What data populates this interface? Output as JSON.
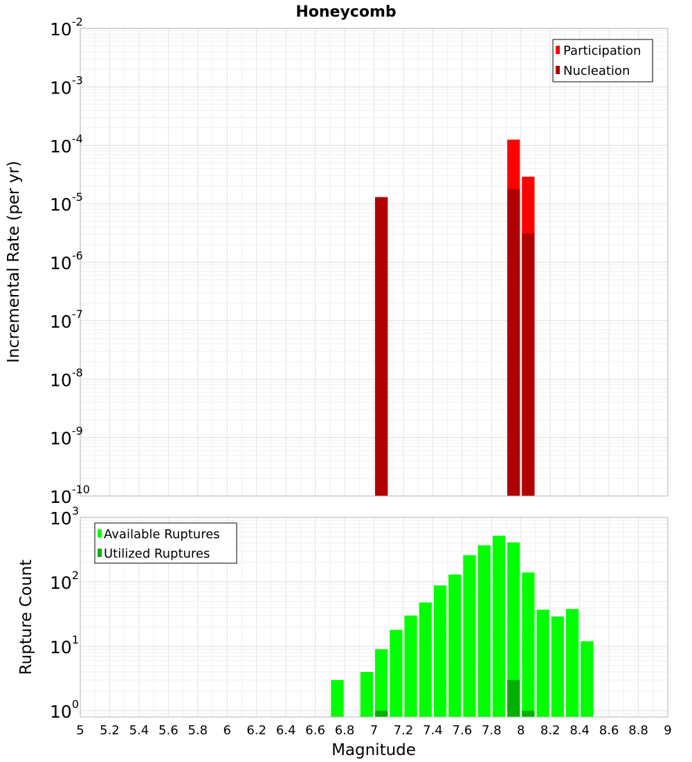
{
  "chart_data": [
    {
      "type": "bar",
      "title": "Honeycomb",
      "xlabel": "",
      "ylabel": "Incremental Rate (per yr)",
      "yscale": "log",
      "xlim": [
        5,
        9
      ],
      "ylim": [
        1e-10,
        0.01
      ],
      "y_tick_exponents": [
        "-10",
        "-9",
        "-8",
        "-7",
        "-6",
        "-5",
        "-4",
        "-3",
        "-2"
      ],
      "grid": true,
      "legend_position": "top-right",
      "legend": [
        "Participation",
        "Nucleation"
      ],
      "bin_width": 0.1,
      "series": [
        {
          "name": "Participation",
          "color": "#ff0000",
          "points": [
            {
              "x": 7.05,
              "y": 1.3e-05
            },
            {
              "x": 7.95,
              "y": 0.000125
            },
            {
              "x": 8.05,
              "y": 2.9e-05
            }
          ]
        },
        {
          "name": "Nucleation",
          "color": "#b00000",
          "points": [
            {
              "x": 7.05,
              "y": 1.3e-05
            },
            {
              "x": 7.95,
              "y": 1.8e-05
            },
            {
              "x": 8.05,
              "y": 3.1e-06
            }
          ]
        }
      ]
    },
    {
      "type": "bar",
      "title": "",
      "xlabel": "Magnitude",
      "ylabel": "Rupture Count",
      "yscale": "log",
      "xlim": [
        5,
        9
      ],
      "ylim": [
        0.8,
        1000
      ],
      "x_ticks": [
        "5",
        "5.2",
        "5.4",
        "5.6",
        "5.8",
        "6",
        "6.2",
        "6.4",
        "6.6",
        "6.8",
        "7",
        "7.2",
        "7.4",
        "7.6",
        "7.8",
        "8",
        "8.2",
        "8.4",
        "8.6",
        "8.8",
        "9"
      ],
      "y_tick_exponents": [
        "0",
        "1",
        "2",
        "3"
      ],
      "grid": true,
      "legend_position": "top-left",
      "legend": [
        "Available Ruptures",
        "Utilized Ruptures"
      ],
      "bin_width": 0.1,
      "series": [
        {
          "name": "Available Ruptures",
          "color": "#00ff00",
          "points": [
            {
              "x": 6.75,
              "y": 3
            },
            {
              "x": 6.95,
              "y": 4
            },
            {
              "x": 7.05,
              "y": 9
            },
            {
              "x": 7.15,
              "y": 18
            },
            {
              "x": 7.25,
              "y": 30
            },
            {
              "x": 7.35,
              "y": 48
            },
            {
              "x": 7.45,
              "y": 88
            },
            {
              "x": 7.55,
              "y": 130
            },
            {
              "x": 7.65,
              "y": 260
            },
            {
              "x": 7.75,
              "y": 370
            },
            {
              "x": 7.85,
              "y": 520
            },
            {
              "x": 7.95,
              "y": 410
            },
            {
              "x": 8.05,
              "y": 140
            },
            {
              "x": 8.15,
              "y": 37
            },
            {
              "x": 8.25,
              "y": 29
            },
            {
              "x": 8.35,
              "y": 38
            },
            {
              "x": 8.45,
              "y": 12
            }
          ]
        },
        {
          "name": "Utilized Ruptures",
          "color": "#00b000",
          "points": [
            {
              "x": 7.05,
              "y": 1
            },
            {
              "x": 7.95,
              "y": 3
            },
            {
              "x": 8.05,
              "y": 1
            }
          ]
        }
      ]
    }
  ]
}
